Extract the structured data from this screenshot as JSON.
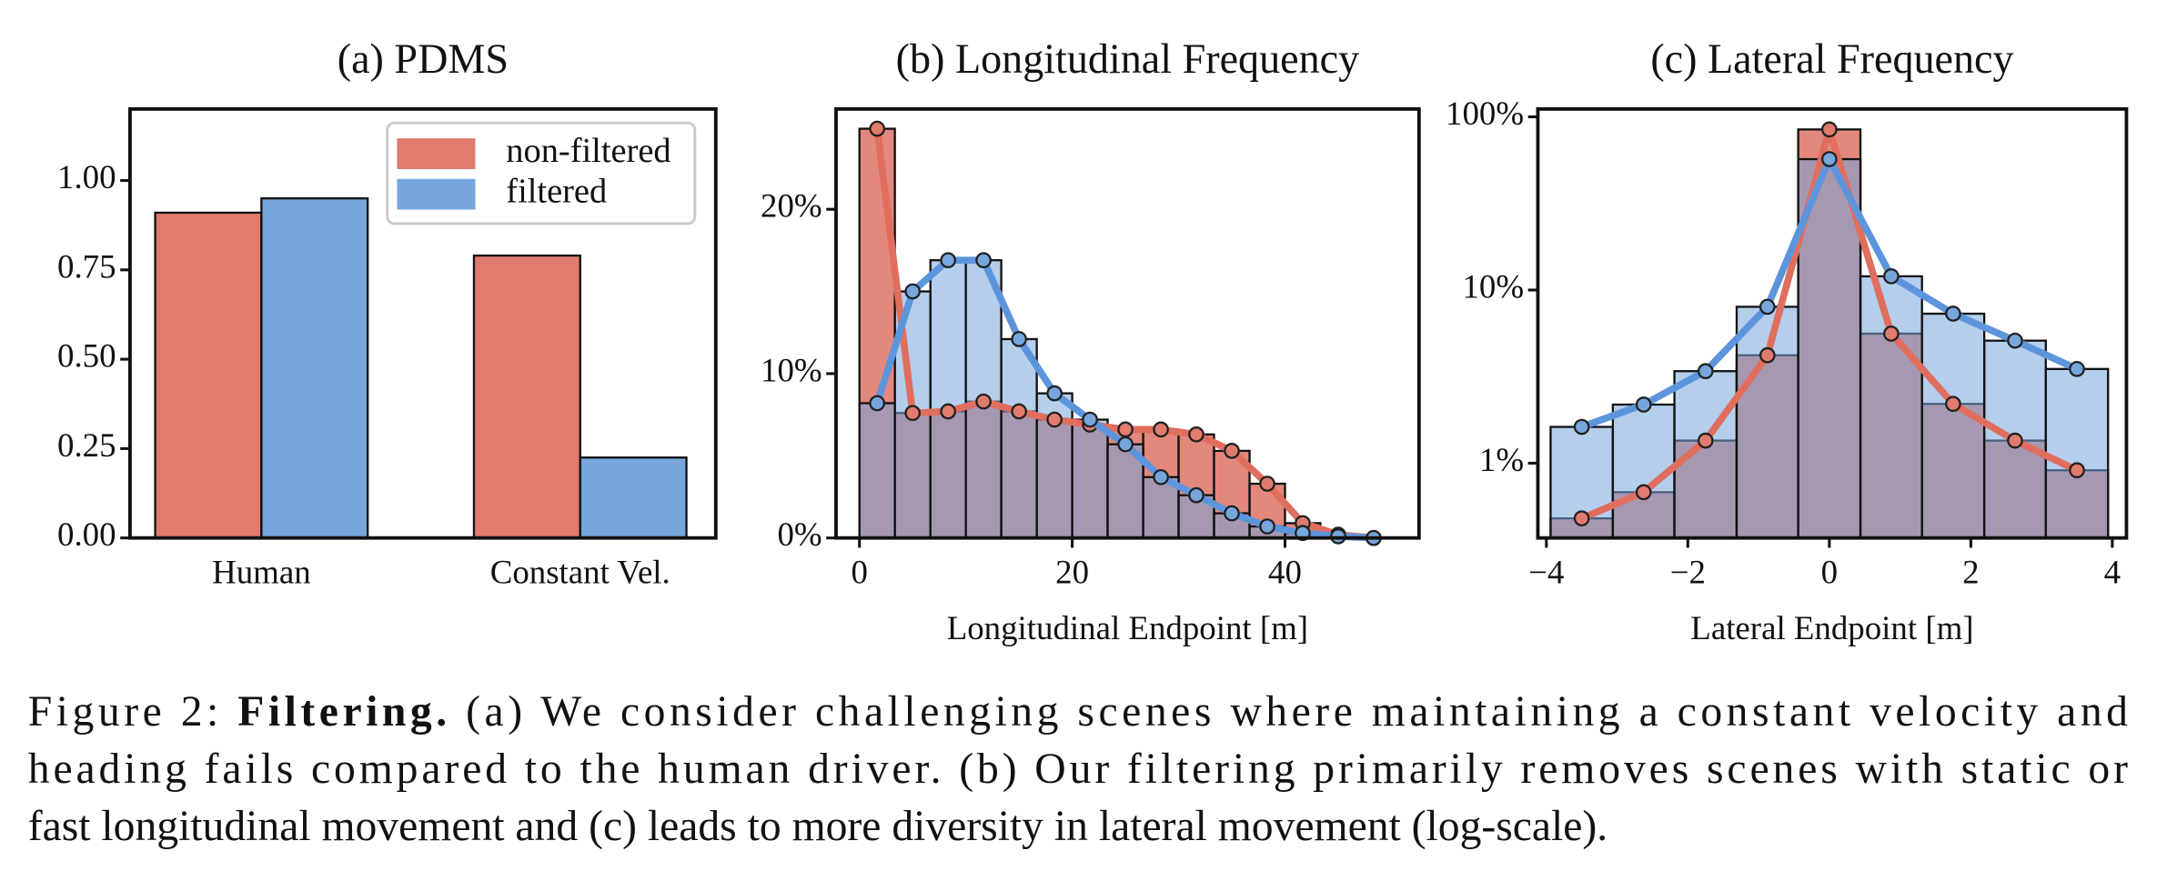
{
  "chart_data": [
    {
      "type": "bar",
      "title": "(a) PDMS",
      "categories": [
        "Human",
        "Constant Vel."
      ],
      "series": [
        {
          "name": "non-filtered",
          "color": "#e07b6e",
          "values": [
            0.91,
            0.79
          ]
        },
        {
          "name": "filtered",
          "color": "#77a6dd",
          "values": [
            0.95,
            0.225
          ]
        }
      ],
      "ylim": [
        0,
        1.2
      ],
      "yticks": [
        {
          "value": 0,
          "label": "0.00"
        },
        {
          "value": 0.25,
          "label": "0.25"
        },
        {
          "value": 0.5,
          "label": "0.50"
        },
        {
          "value": 0.75,
          "label": "0.75"
        },
        {
          "value": 1,
          "label": "1.00"
        }
      ],
      "legend": "upper right"
    },
    {
      "type": "histogram",
      "title": "(b) Longitudinal Frequency",
      "x_label": "Longitudinal Endpoint [m]",
      "bins": [
        0,
        3.33,
        6.67,
        10,
        13.33,
        16.67,
        20,
        23.33,
        26.67,
        30,
        33.33,
        36.67,
        40,
        43.33,
        46.67,
        50
      ],
      "series": [
        {
          "color": "#e07b6e",
          "values": [
            24.9,
            7.6,
            7.7,
            8.3,
            7.7,
            7.2,
            6.9,
            6.6,
            6.6,
            6.3,
            5.3,
            3.3,
            0.9,
            0.2,
            0
          ]
        },
        {
          "color": "#77a6dd",
          "values": [
            8.2,
            15.0,
            16.9,
            16.9,
            12.1,
            8.8,
            7.2,
            5.7,
            3.7,
            2.6,
            1.5,
            0.7,
            0.3,
            0.1,
            0
          ]
        }
      ],
      "xlim": [
        -2.2,
        52.6
      ],
      "xticks": [
        0,
        20,
        40
      ],
      "ylim": [
        0,
        26.1
      ],
      "yticks": [
        {
          "value": 0,
          "label": "0%"
        },
        {
          "value": 10,
          "label": "10%"
        },
        {
          "value": 20,
          "label": "20%"
        }
      ]
    },
    {
      "type": "histogram",
      "title": "(c) Lateral Frequency",
      "x_label": "Lateral Endpoint [m]",
      "bins": [
        -3.94,
        -3.06,
        -2.19,
        -1.31,
        -0.44,
        0.44,
        1.31,
        2.19,
        3.06,
        3.94
      ],
      "series": [
        {
          "color": "#e07b6e",
          "values": [
            0.48,
            0.68,
            1.35,
            4.2,
            84.6,
            5.6,
            2.2,
            1.35,
            0.91
          ]
        },
        {
          "color": "#77a6dd",
          "values": [
            1.62,
            2.18,
            3.4,
            8.0,
            57,
            12.0,
            7.3,
            5.1,
            3.5
          ]
        }
      ],
      "xlim": [
        -4.12,
        4.2
      ],
      "xticks": [
        {
          "value": -4,
          "label": "−4"
        },
        {
          "value": -2,
          "label": "−2"
        },
        0,
        2,
        4
      ],
      "ylim": [
        0.37,
        111
      ],
      "yscale": "log",
      "yticks": [
        {
          "value": 1,
          "label": "1%"
        },
        {
          "value": 10,
          "label": "10%"
        },
        {
          "value": 100,
          "label": "100%"
        }
      ]
    }
  ],
  "caption": {
    "label": "Figure 2:",
    "bold": "Filtering.",
    "lines": [
      "(a) We consider challenging scenes where maintaining a constant velocity and",
      "heading fails compared to the human driver. (b) Our filtering primarily removes scenes with static or",
      "fast longitudinal movement and (c) leads to more diversity in lateral movement (log-scale)."
    ]
  }
}
